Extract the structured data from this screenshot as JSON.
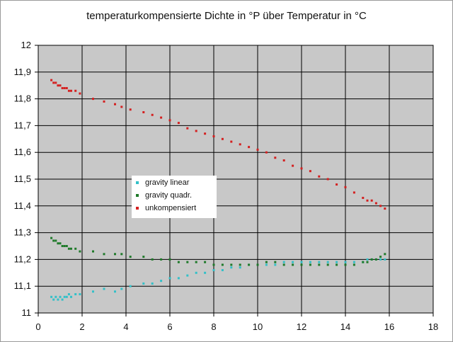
{
  "chart_data": {
    "type": "scatter",
    "title": "temperaturkompensierte Dichte in °P über Temperatur in °C",
    "xlabel": "",
    "ylabel": "",
    "xlim": [
      0,
      18
    ],
    "ylim": [
      11,
      12
    ],
    "x_ticks": [
      "0",
      "2",
      "4",
      "6",
      "8",
      "10",
      "12",
      "14",
      "16",
      "18"
    ],
    "y_ticks": [
      "11",
      "11,1",
      "11,2",
      "11,3",
      "11,4",
      "11,5",
      "11,6",
      "11,7",
      "11,8",
      "11,9",
      "12"
    ],
    "grid": true,
    "plot_background": "#c8c8c8",
    "legend_position": "left-center",
    "series": [
      {
        "name": "gravity linear",
        "color": "#33c0c8",
        "points": [
          [
            0.6,
            11.06
          ],
          [
            0.7,
            11.05
          ],
          [
            0.8,
            11.06
          ],
          [
            0.9,
            11.05
          ],
          [
            1.0,
            11.06
          ],
          [
            1.1,
            11.05
          ],
          [
            1.2,
            11.06
          ],
          [
            1.3,
            11.06
          ],
          [
            1.4,
            11.07
          ],
          [
            1.5,
            11.06
          ],
          [
            1.7,
            11.07
          ],
          [
            1.9,
            11.07
          ],
          [
            2.5,
            11.08
          ],
          [
            3.0,
            11.09
          ],
          [
            3.5,
            11.08
          ],
          [
            3.8,
            11.09
          ],
          [
            4.2,
            11.1
          ],
          [
            4.8,
            11.11
          ],
          [
            5.2,
            11.11
          ],
          [
            5.6,
            11.12
          ],
          [
            6.0,
            11.13
          ],
          [
            6.4,
            11.13
          ],
          [
            6.8,
            11.14
          ],
          [
            7.2,
            11.15
          ],
          [
            7.6,
            11.15
          ],
          [
            8.0,
            11.16
          ],
          [
            8.4,
            11.16
          ],
          [
            8.8,
            11.17
          ],
          [
            9.2,
            11.17
          ],
          [
            9.6,
            11.18
          ],
          [
            10.0,
            11.18
          ],
          [
            10.4,
            11.18
          ],
          [
            10.8,
            11.18
          ],
          [
            11.2,
            11.19
          ],
          [
            11.6,
            11.19
          ],
          [
            12.0,
            11.19
          ],
          [
            12.4,
            11.19
          ],
          [
            12.8,
            11.19
          ],
          [
            13.2,
            11.19
          ],
          [
            13.6,
            11.19
          ],
          [
            14.0,
            11.19
          ],
          [
            14.4,
            11.19
          ],
          [
            14.8,
            11.19
          ],
          [
            15.0,
            11.2
          ],
          [
            15.2,
            11.2
          ],
          [
            15.4,
            11.2
          ],
          [
            15.6,
            11.2
          ],
          [
            15.8,
            11.2
          ]
        ]
      },
      {
        "name": "gravity quadr.",
        "color": "#1f7a2a",
        "points": [
          [
            0.6,
            11.28
          ],
          [
            0.7,
            11.27
          ],
          [
            0.8,
            11.27
          ],
          [
            0.9,
            11.26
          ],
          [
            1.0,
            11.26
          ],
          [
            1.1,
            11.25
          ],
          [
            1.2,
            11.25
          ],
          [
            1.3,
            11.25
          ],
          [
            1.4,
            11.24
          ],
          [
            1.5,
            11.24
          ],
          [
            1.7,
            11.24
          ],
          [
            1.9,
            11.23
          ],
          [
            2.5,
            11.23
          ],
          [
            3.0,
            11.22
          ],
          [
            3.5,
            11.22
          ],
          [
            3.8,
            11.22
          ],
          [
            4.2,
            11.21
          ],
          [
            4.8,
            11.21
          ],
          [
            5.2,
            11.2
          ],
          [
            5.6,
            11.2
          ],
          [
            6.0,
            11.2
          ],
          [
            6.4,
            11.19
          ],
          [
            6.8,
            11.19
          ],
          [
            7.2,
            11.19
          ],
          [
            7.6,
            11.19
          ],
          [
            8.0,
            11.18
          ],
          [
            8.4,
            11.18
          ],
          [
            8.8,
            11.18
          ],
          [
            9.2,
            11.18
          ],
          [
            9.6,
            11.18
          ],
          [
            10.0,
            11.18
          ],
          [
            10.4,
            11.19
          ],
          [
            10.8,
            11.19
          ],
          [
            11.2,
            11.18
          ],
          [
            11.6,
            11.18
          ],
          [
            12.0,
            11.18
          ],
          [
            12.4,
            11.18
          ],
          [
            12.8,
            11.18
          ],
          [
            13.2,
            11.18
          ],
          [
            13.6,
            11.18
          ],
          [
            14.0,
            11.18
          ],
          [
            14.4,
            11.18
          ],
          [
            14.8,
            11.19
          ],
          [
            15.0,
            11.19
          ],
          [
            15.2,
            11.2
          ],
          [
            15.4,
            11.2
          ],
          [
            15.6,
            11.21
          ],
          [
            15.8,
            11.22
          ]
        ]
      },
      {
        "name": "unkompensiert",
        "color": "#d42020",
        "points": [
          [
            0.6,
            11.87
          ],
          [
            0.7,
            11.86
          ],
          [
            0.8,
            11.86
          ],
          [
            0.9,
            11.85
          ],
          [
            1.0,
            11.85
          ],
          [
            1.1,
            11.84
          ],
          [
            1.2,
            11.84
          ],
          [
            1.3,
            11.84
          ],
          [
            1.4,
            11.83
          ],
          [
            1.5,
            11.83
          ],
          [
            1.7,
            11.83
          ],
          [
            1.9,
            11.82
          ],
          [
            2.5,
            11.8
          ],
          [
            3.0,
            11.79
          ],
          [
            3.5,
            11.78
          ],
          [
            3.8,
            11.77
          ],
          [
            4.2,
            11.76
          ],
          [
            4.8,
            11.75
          ],
          [
            5.2,
            11.74
          ],
          [
            5.6,
            11.73
          ],
          [
            6.0,
            11.72
          ],
          [
            6.4,
            11.71
          ],
          [
            6.8,
            11.69
          ],
          [
            7.2,
            11.68
          ],
          [
            7.6,
            11.67
          ],
          [
            8.0,
            11.66
          ],
          [
            8.4,
            11.65
          ],
          [
            8.8,
            11.64
          ],
          [
            9.2,
            11.63
          ],
          [
            9.6,
            11.62
          ],
          [
            10.0,
            11.61
          ],
          [
            10.4,
            11.6
          ],
          [
            10.8,
            11.58
          ],
          [
            11.2,
            11.57
          ],
          [
            11.6,
            11.55
          ],
          [
            12.0,
            11.54
          ],
          [
            12.4,
            11.53
          ],
          [
            12.8,
            11.51
          ],
          [
            13.2,
            11.5
          ],
          [
            13.6,
            11.48
          ],
          [
            14.0,
            11.47
          ],
          [
            14.4,
            11.45
          ],
          [
            14.8,
            11.43
          ],
          [
            15.0,
            11.42
          ],
          [
            15.2,
            11.42
          ],
          [
            15.4,
            11.41
          ],
          [
            15.6,
            11.4
          ],
          [
            15.8,
            11.39
          ]
        ]
      }
    ]
  }
}
